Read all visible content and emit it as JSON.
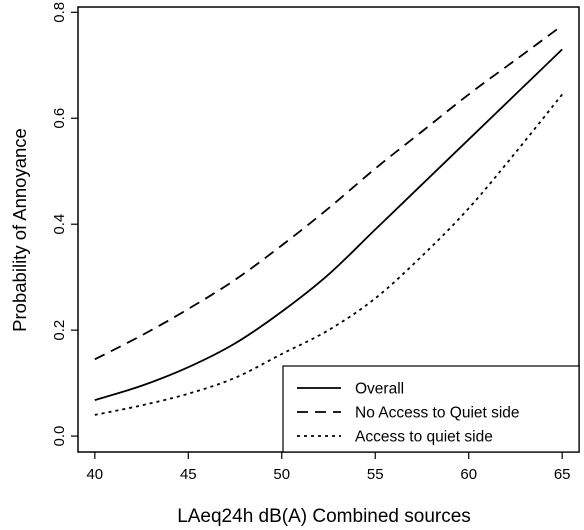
{
  "chart_data": {
    "type": "line",
    "title": "",
    "xlabel": "LAeq24h dB(A) Combined sources",
    "ylabel": "Probability of Annoyance",
    "xlim": [
      39.1,
      65.9
    ],
    "ylim": [
      -0.03,
      0.81
    ],
    "xticks": [
      40,
      45,
      50,
      55,
      60,
      65
    ],
    "yticks": [
      0.0,
      0.2,
      0.4,
      0.6,
      0.8
    ],
    "xtick_labels": [
      "40",
      "45",
      "50",
      "55",
      "60",
      "65"
    ],
    "ytick_labels": [
      "0.0",
      "0.2",
      "0.4",
      "0.6",
      "0.8"
    ],
    "grid": false,
    "legend_position": "bottom-right",
    "series": [
      {
        "name": "Overall",
        "line_style": "solid",
        "x": [
          40,
          42.5,
          45,
          47.5,
          50,
          52.5,
          55,
          57.5,
          60,
          62.5,
          65
        ],
        "y": [
          0.068,
          0.095,
          0.13,
          0.175,
          0.235,
          0.305,
          0.39,
          0.475,
          0.56,
          0.645,
          0.73
        ]
      },
      {
        "name": "No Access to Quiet side",
        "line_style": "dashed",
        "x": [
          40,
          42.5,
          45,
          47.5,
          50,
          52.5,
          55,
          57.5,
          60,
          62.5,
          65
        ],
        "y": [
          0.145,
          0.19,
          0.24,
          0.295,
          0.36,
          0.43,
          0.505,
          0.575,
          0.645,
          0.71,
          0.775
        ]
      },
      {
        "name": "Access to quiet side",
        "line_style": "dotted",
        "x": [
          40,
          42.5,
          45,
          47.5,
          50,
          52.5,
          55,
          57.5,
          60,
          62.5,
          65
        ],
        "y": [
          0.04,
          0.058,
          0.08,
          0.11,
          0.155,
          0.2,
          0.26,
          0.34,
          0.43,
          0.535,
          0.645
        ]
      }
    ]
  }
}
